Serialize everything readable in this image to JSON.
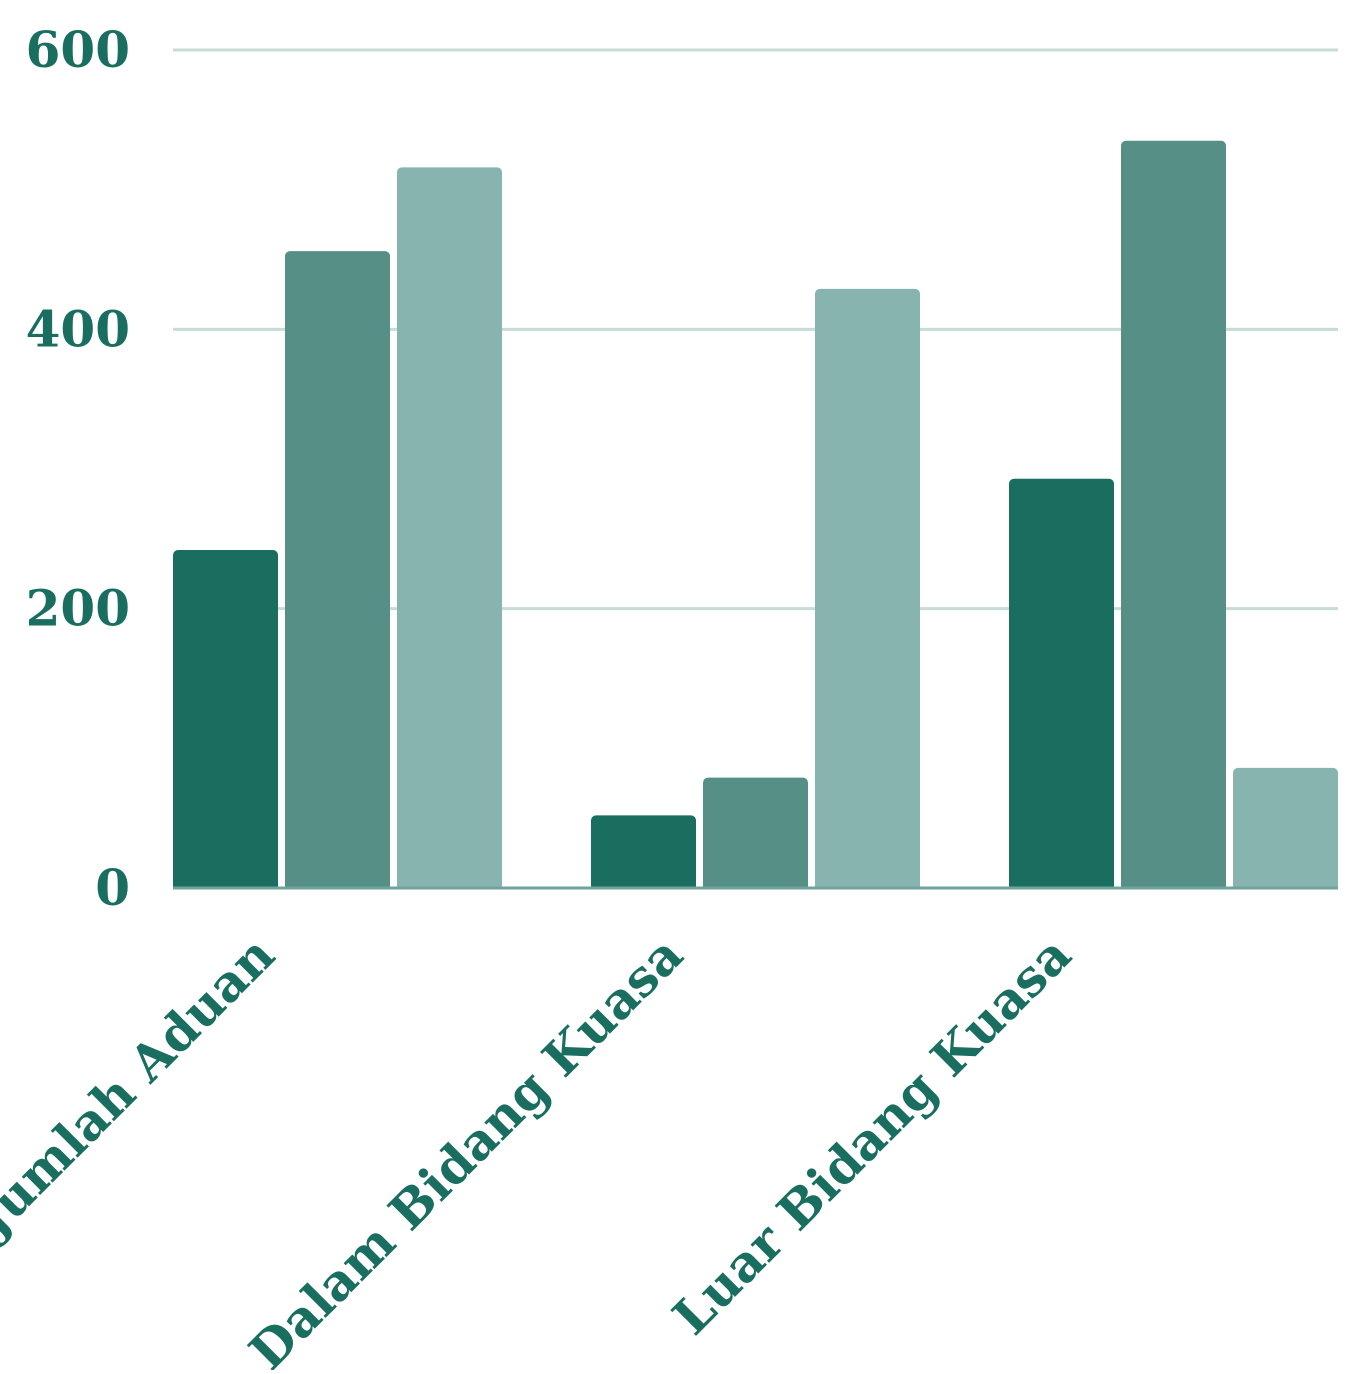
{
  "chart_data": {
    "type": "bar",
    "title": "",
    "xlabel": "",
    "ylabel": "",
    "categories": [
      "Jumlah Aduan",
      "Dalam Bidang Kuasa",
      "Luar Bidang Kuasa"
    ],
    "series": [
      {
        "values": [
          242,
          52,
          293
        ],
        "color": "#196e60"
      },
      {
        "values": [
          456,
          79,
          535
        ],
        "color": "#558f86"
      },
      {
        "values": [
          516,
          429,
          86
        ],
        "color": "#87b4af"
      }
    ],
    "ylim": [
      0,
      600
    ],
    "yticks": [
      "0",
      "200",
      "400",
      "600"
    ],
    "grid": true,
    "legend": "none",
    "colors": {
      "text": "#196e60",
      "grid": "#c5dcd8",
      "axis": "#6fa39b"
    }
  }
}
